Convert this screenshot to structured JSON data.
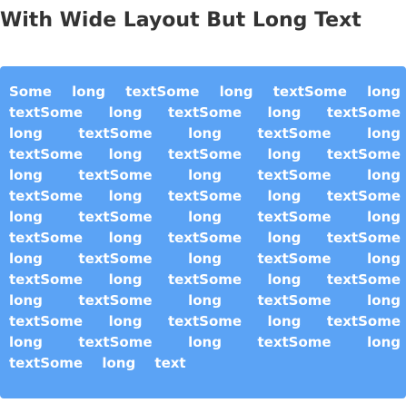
{
  "page": {
    "heading": "With Wide Layout But Long Text"
  },
  "card": {
    "text": "Some long textSome long textSome long textSome long textSome long textSome long textSome long textSome long textSome long textSome long textSome long textSome long textSome long textSome long textSome long textSome long textSome long textSome long textSome long textSome long textSome long textSome long textSome long textSome long textSome long textSome long textSome long textSome long textSome long textSome long textSome long textSome long textSome long textSome long text",
    "background_color": "#5ba3f5",
    "text_color": "#ffffff"
  }
}
